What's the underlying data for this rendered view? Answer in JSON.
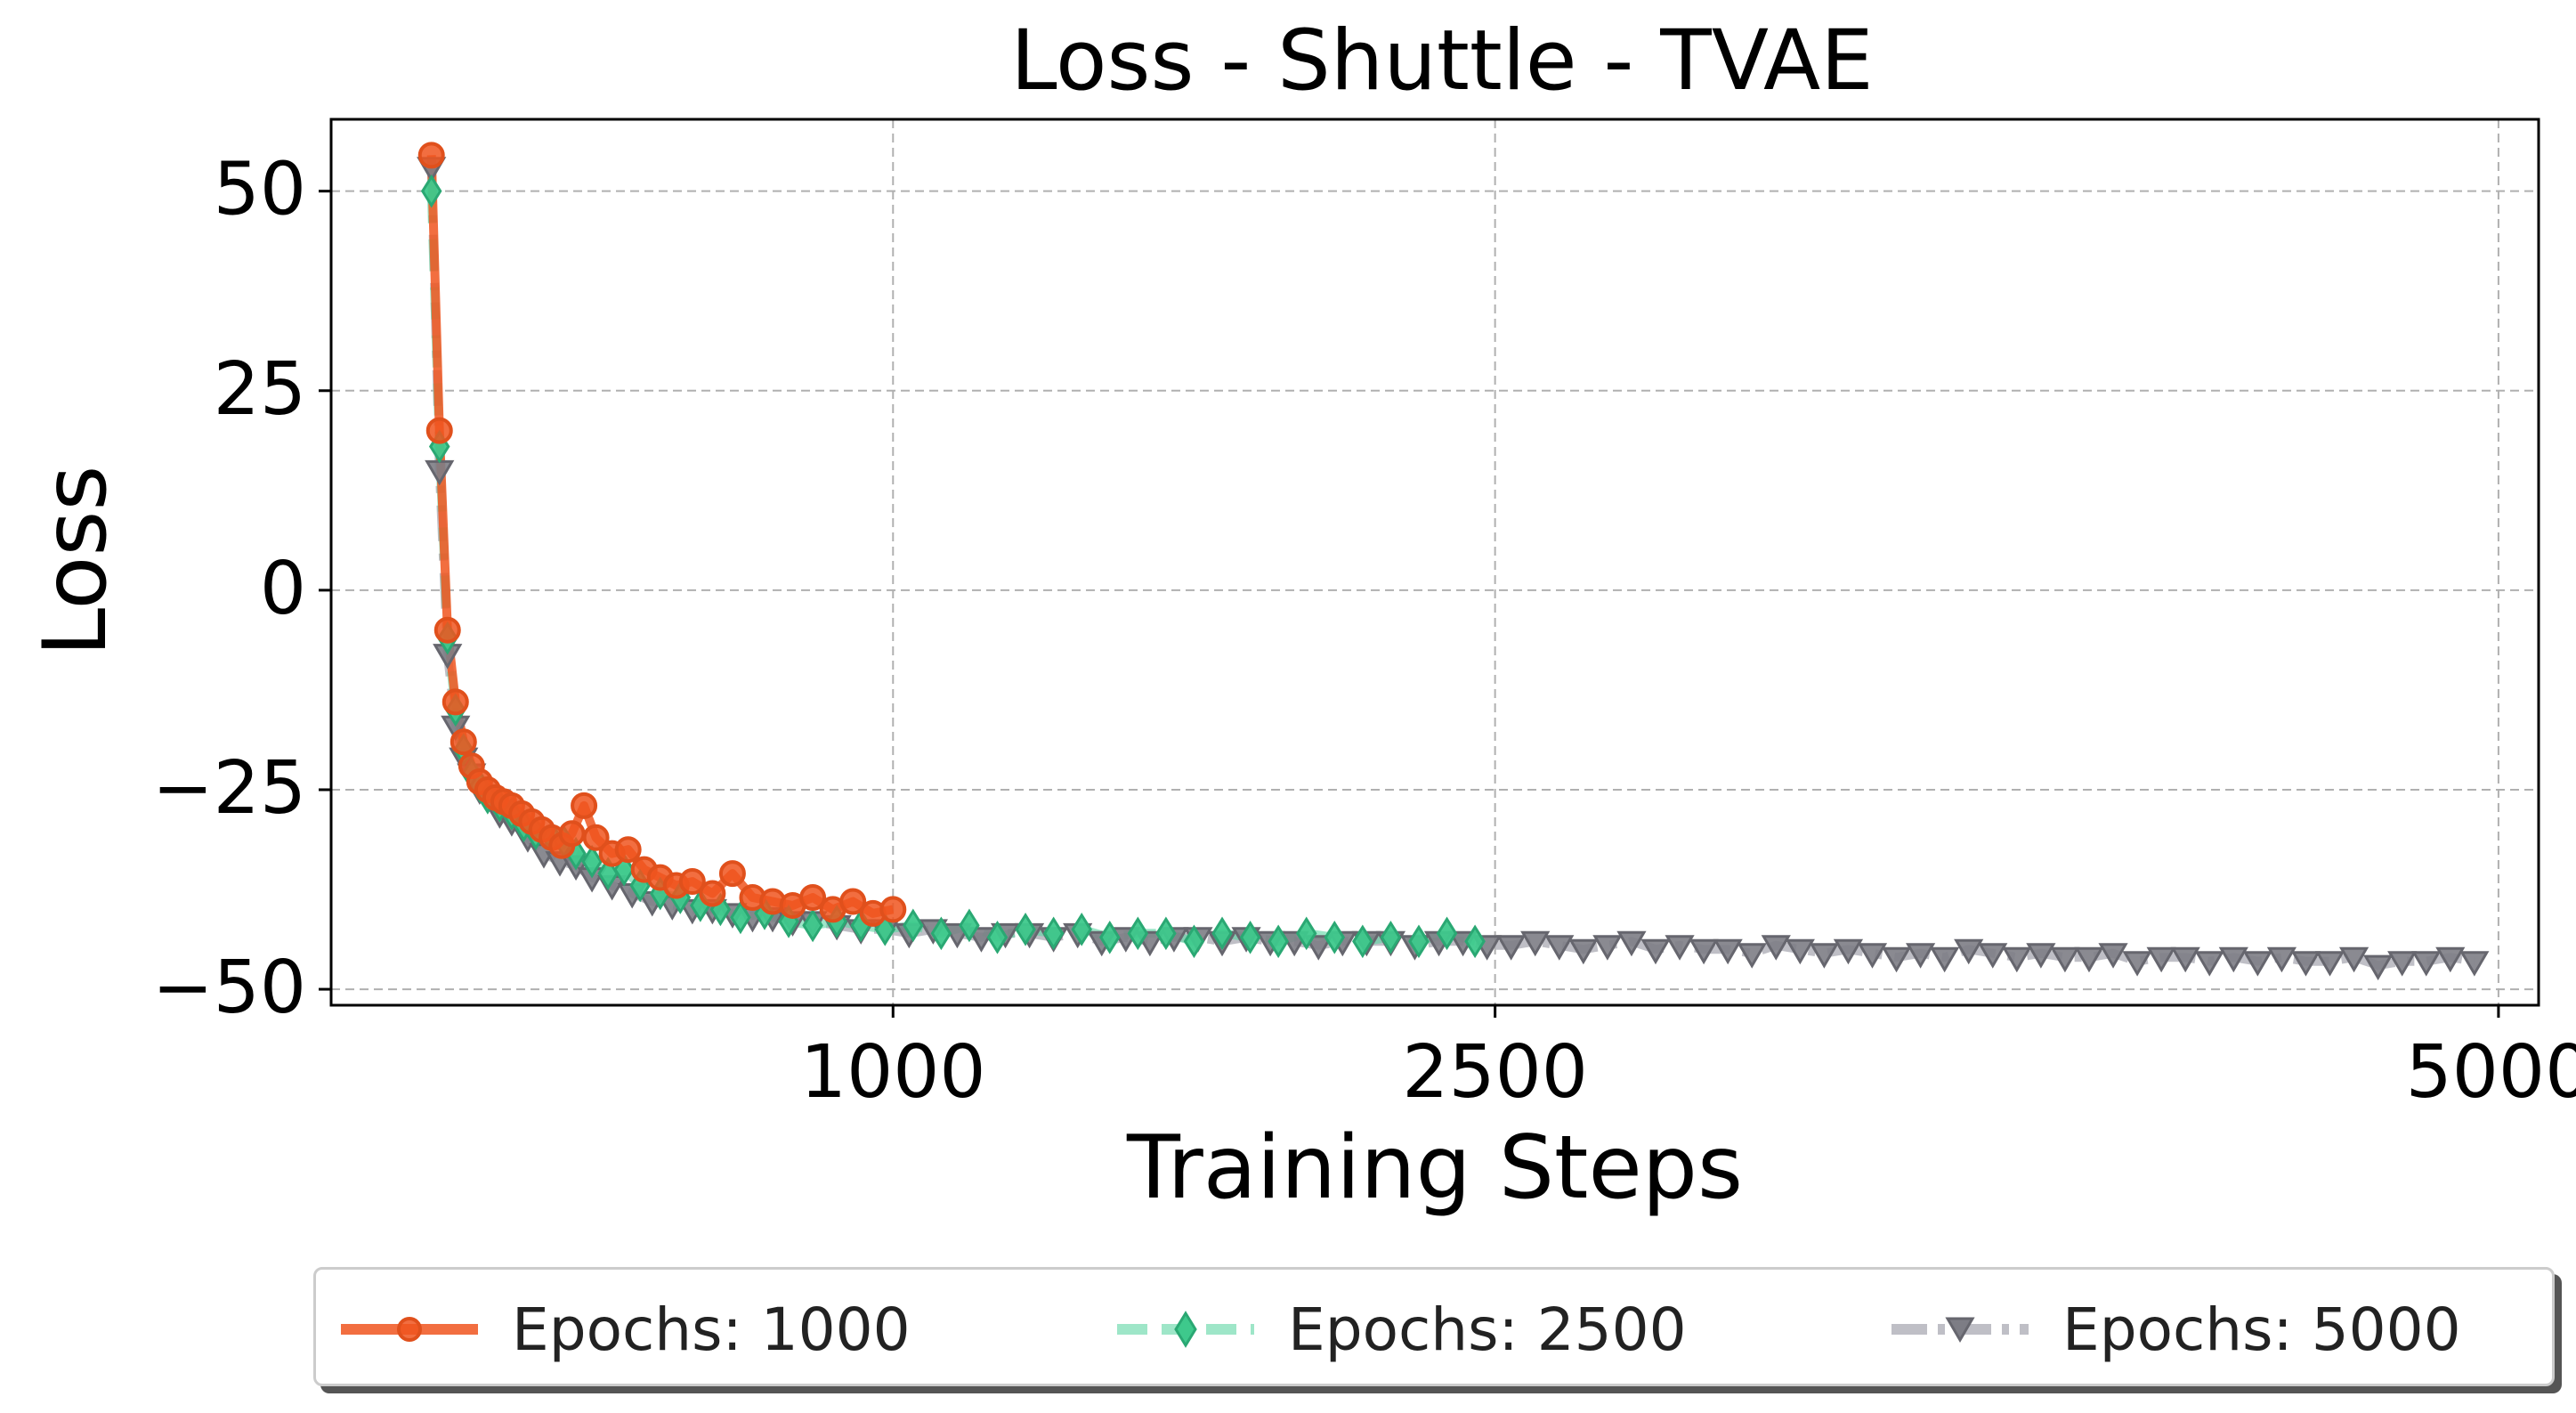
{
  "chart_data": {
    "type": "line",
    "title": "Loss - Shuttle - TVAE",
    "xlabel": "Training Steps",
    "ylabel": "Loss",
    "xlim": [
      -400,
      5100
    ],
    "ylim": [
      -52,
      59
    ],
    "x_scale": "linear",
    "xticks": [
      1000,
      2500,
      5000
    ],
    "xtick_labels": [
      "1000",
      "2500",
      "5000"
    ],
    "yticks": [
      50,
      25,
      0,
      -25,
      -50
    ],
    "ytick_labels": [
      "50",
      "25",
      "0",
      "−25",
      "−50"
    ],
    "grid": true,
    "legend_position": "below",
    "series": [
      {
        "name": "Epochs: 1000",
        "color": "#f0551f",
        "line_style": "solid",
        "marker": "circle",
        "x": [
          -150,
          -130,
          -110,
          -90,
          -70,
          -50,
          -30,
          -10,
          10,
          30,
          50,
          75,
          100,
          125,
          150,
          175,
          200,
          230,
          260,
          300,
          340,
          380,
          420,
          460,
          500,
          550,
          600,
          650,
          700,
          750,
          800,
          850,
          900,
          950,
          1000
        ],
        "y": [
          54.5,
          20,
          -5,
          -14,
          -19,
          -22,
          -24,
          -25,
          -26,
          -26.5,
          -27,
          -28,
          -29,
          -30,
          -31,
          -32,
          -30.5,
          -27,
          -31,
          -33,
          -32.5,
          -35,
          -36,
          -37,
          -36.5,
          -38,
          -35.5,
          -38.5,
          -39,
          -39.5,
          -38.5,
          -40,
          -39,
          -40.5,
          -40
        ]
      },
      {
        "name": "Epochs: 2500",
        "color": "#5ed6a3",
        "line_style": "dashed",
        "marker": "diamond",
        "x": [
          -150,
          -130,
          -110,
          -90,
          -70,
          -50,
          -30,
          -10,
          20,
          50,
          80,
          110,
          150,
          180,
          210,
          250,
          290,
          330,
          370,
          420,
          470,
          520,
          570,
          620,
          680,
          740,
          800,
          860,
          920,
          980,
          1050,
          1120,
          1190,
          1260,
          1330,
          1400,
          1470,
          1540,
          1610,
          1680,
          1750,
          1820,
          1890,
          1960,
          2030,
          2100,
          2170,
          2240,
          2310,
          2380,
          2450
        ],
        "y": [
          50,
          18,
          -6,
          -15,
          -20,
          -23,
          -24.5,
          -26,
          -27,
          -28,
          -29.5,
          -30.5,
          -31,
          -31.5,
          -33,
          -34,
          -35.5,
          -35,
          -37,
          -38,
          -38.5,
          -39.5,
          -40,
          -41,
          -40.5,
          -41.5,
          -42,
          -41.5,
          -42,
          -42.5,
          -42,
          -43,
          -42,
          -43.5,
          -42.5,
          -43,
          -42.5,
          -43.5,
          -43,
          -43,
          -44,
          -43,
          -43.5,
          -44,
          -43,
          -43.5,
          -44,
          -43.5,
          -44,
          -43,
          -44
        ]
      },
      {
        "name": "Epochs: 5000",
        "color": "#b8b8c0",
        "line_style": "dashdot",
        "marker": "triangle-down",
        "x": [
          -150,
          -130,
          -110,
          -90,
          -70,
          -50,
          -30,
          -10,
          20,
          50,
          90,
          130,
          170,
          210,
          250,
          300,
          350,
          400,
          450,
          500,
          550,
          600,
          650,
          700,
          750,
          800,
          860,
          920,
          980,
          1040,
          1100,
          1160,
          1220,
          1280,
          1340,
          1400,
          1460,
          1520,
          1580,
          1640,
          1700,
          1760,
          1820,
          1880,
          1940,
          2000,
          2060,
          2120,
          2180,
          2240,
          2300,
          2360,
          2420,
          2480,
          2540,
          2600,
          2660,
          2720,
          2780,
          2840,
          2900,
          2960,
          3020,
          3080,
          3140,
          3200,
          3260,
          3320,
          3380,
          3440,
          3500,
          3560,
          3620,
          3680,
          3740,
          3800,
          3860,
          3920,
          3980,
          4040,
          4100,
          4160,
          4220,
          4280,
          4340,
          4400,
          4460,
          4520,
          4580,
          4640,
          4700,
          4760,
          4820,
          4880,
          4940
        ],
        "y": [
          53,
          15,
          -8,
          -17,
          -21,
          -23,
          -25,
          -26,
          -28,
          -29,
          -31,
          -33,
          -34,
          -34.5,
          -36,
          -37,
          -38,
          -39,
          -39.5,
          -40,
          -40,
          -40.5,
          -41,
          -41,
          -41.5,
          -41.5,
          -42,
          -42.5,
          -42.5,
          -43,
          -42.5,
          -43,
          -43.5,
          -43,
          -43,
          -43.5,
          -43,
          -44,
          -43.5,
          -44,
          -43.5,
          -43.5,
          -44,
          -43.5,
          -44,
          -44,
          -44.5,
          -44,
          -44,
          -44,
          -44.5,
          -44,
          -44,
          -44.5,
          -44.5,
          -44,
          -44.5,
          -45,
          -44.5,
          -44,
          -45,
          -44.5,
          -45,
          -45,
          -45.5,
          -44.5,
          -45,
          -45.5,
          -45,
          -45.5,
          -46,
          -45.5,
          -46,
          -45,
          -45.5,
          -46,
          -45.5,
          -46,
          -46,
          -45.5,
          -46.5,
          -46,
          -46,
          -46.5,
          -46,
          -46.5,
          -46,
          -46.5,
          -46.5,
          -46,
          -47,
          -46.5,
          -46.5,
          -46,
          -46.5
        ]
      }
    ]
  },
  "legend": {
    "items": [
      "Epochs: 1000",
      "Epochs: 2500",
      "Epochs: 5000"
    ]
  }
}
